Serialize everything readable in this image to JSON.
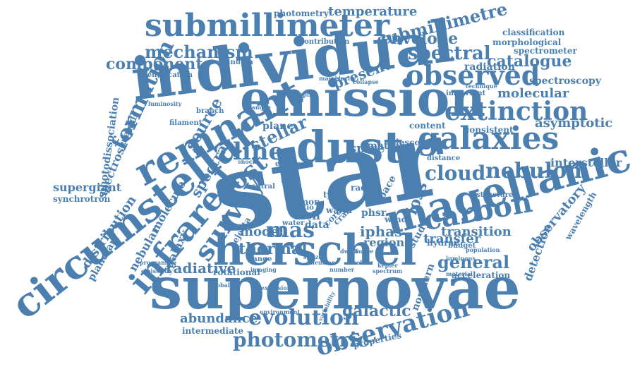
{
  "color": "#4a7fb0",
  "words": [
    "star",
    "supernovae",
    "individual",
    "emission",
    "dust",
    "herschel",
    "magellanic",
    "circumstellar",
    "remnant",
    "infrared",
    "galaxies",
    "submillimeter",
    "observed",
    "extinction",
    "observation",
    "carbon",
    "cloud",
    "nebulon",
    "evolution",
    "photometric",
    "survey",
    "post",
    "line",
    "mas",
    "formation",
    "submillimetre",
    "spectral",
    "mechanism",
    "component",
    "envelope",
    "catalogue",
    "general",
    "thermal",
    "abundance",
    "galactic",
    "molecular",
    "stellar",
    "source",
    "asymptotic",
    "observatory",
    "radiative",
    "temperature",
    "spectra",
    "interstellar",
    "transfer",
    "present",
    "loss",
    "model",
    "photometry",
    "classification",
    "morphological",
    "spectrometer",
    "radiation",
    "spectroscopy",
    "spectroscopic",
    "photodissociation",
    "supergiant",
    "synchrotron",
    "nebular",
    "distribution",
    "planetary",
    "galaxy",
    "molecule",
    "detection",
    "wavelength",
    "iphas",
    "region",
    "acceleration",
    "intermediate",
    "rotational",
    "transition",
    "properties",
    "northern",
    "analysis",
    "identification",
    "contribution",
    "continuum",
    "spire",
    "matter",
    "plane",
    "content",
    "telescope",
    "consistent",
    "ejecta",
    "important",
    "technique",
    "structure",
    "distance",
    "rich",
    "data",
    "warm",
    "water",
    "almon",
    "core",
    "crab",
    "phsr",
    "wind",
    "study",
    "space",
    "radio",
    "type",
    "ratio",
    "range",
    "hydrae",
    "budget",
    "material",
    "kepler",
    "image",
    "imaging",
    "spitzer",
    "neutron",
    "colour",
    "spectrum",
    "environment",
    "explosion",
    "variability",
    "luminous",
    "population",
    "programme",
    "massive",
    "velocity",
    "luminosity",
    "branch",
    "filament",
    "sample",
    "emissivity",
    "global",
    "dwarf",
    "number",
    "shock",
    "excess",
    "central",
    "time",
    "mapping",
    "collapse"
  ]
}
